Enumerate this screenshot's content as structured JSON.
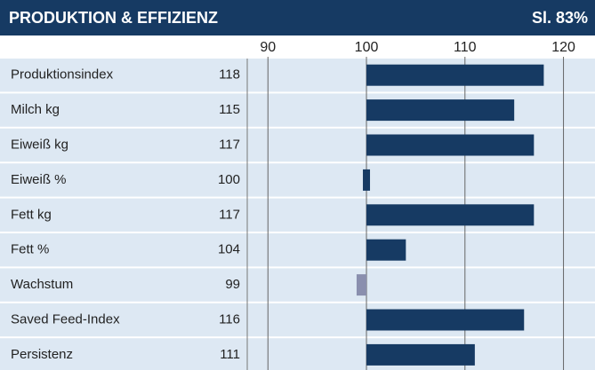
{
  "chart_data": {
    "type": "bar",
    "title": "PRODUKTION & EFFIZIENZ",
    "subtitle": "Sl. 83%",
    "categories": [
      "Produktionsindex",
      "Milch kg",
      "Eiweiß kg",
      "Eiweiß %",
      "Fett kg",
      "Fett %",
      "Wachstum",
      "Saved Feed-Index",
      "Persistenz"
    ],
    "values": [
      118,
      115,
      117,
      100,
      117,
      104,
      99,
      116,
      111
    ],
    "base": 100,
    "color": "#163a63",
    "below_color": "#8a8fae",
    "xlim": [
      87.9,
      123.2
    ],
    "xticks": [
      90,
      100,
      110,
      120
    ],
    "grid": true
  }
}
